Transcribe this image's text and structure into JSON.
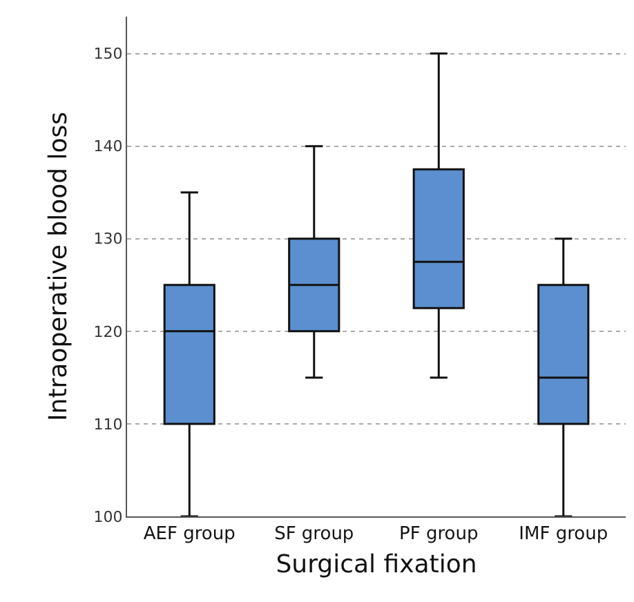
{
  "chart_data": {
    "type": "box",
    "xlabel": "Surgical fixation",
    "ylabel": "Intraoperative blood loss",
    "categories": [
      "AEF group",
      "SF group",
      "PF group",
      "IMF group"
    ],
    "color": "#5b8fcf",
    "ylim": [
      100,
      154
    ],
    "yticks": [
      100,
      110,
      120,
      130,
      140,
      150
    ],
    "grid": "y",
    "boxes": [
      {
        "low": 100,
        "q1": 110,
        "median": 120,
        "q3": 125,
        "high": 135
      },
      {
        "low": 115,
        "q1": 120,
        "median": 125,
        "q3": 130,
        "high": 140
      },
      {
        "low": 115,
        "q1": 122.5,
        "median": 127.5,
        "q3": 137.5,
        "high": 150
      },
      {
        "low": 100,
        "q1": 110,
        "median": 115,
        "q3": 125,
        "high": 130
      }
    ]
  }
}
